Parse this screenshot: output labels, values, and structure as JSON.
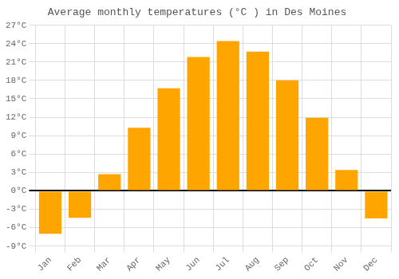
{
  "chart_data": {
    "type": "bar",
    "title": "Average monthly temperatures (°C ) in Des Moines",
    "categories": [
      "Jan",
      "Feb",
      "Mar",
      "Apr",
      "May",
      "Jun",
      "Jul",
      "Aug",
      "Sep",
      "Oct",
      "Nov",
      "Dec"
    ],
    "values": [
      -7.0,
      -4.4,
      2.7,
      10.3,
      16.7,
      21.8,
      24.4,
      22.7,
      18.0,
      11.9,
      3.4,
      -4.5
    ],
    "color": "#FFA500",
    "ylim": [
      -9,
      27
    ],
    "yticks": [
      {
        "value": -9,
        "label": "-9°C"
      },
      {
        "value": -6,
        "label": "-6°C"
      },
      {
        "value": -3,
        "label": "-3°C"
      },
      {
        "value": 0,
        "label": "0°C"
      },
      {
        "value": 3,
        "label": "3°C"
      },
      {
        "value": 6,
        "label": "6°C"
      },
      {
        "value": 9,
        "label": "9°C"
      },
      {
        "value": 12,
        "label": "12°C"
      },
      {
        "value": 15,
        "label": "15°C"
      },
      {
        "value": 18,
        "label": "18°C"
      },
      {
        "value": 21,
        "label": "21°C"
      },
      {
        "value": 24,
        "label": "24°C"
      },
      {
        "value": 27,
        "label": "27°C"
      }
    ],
    "grid": true
  }
}
